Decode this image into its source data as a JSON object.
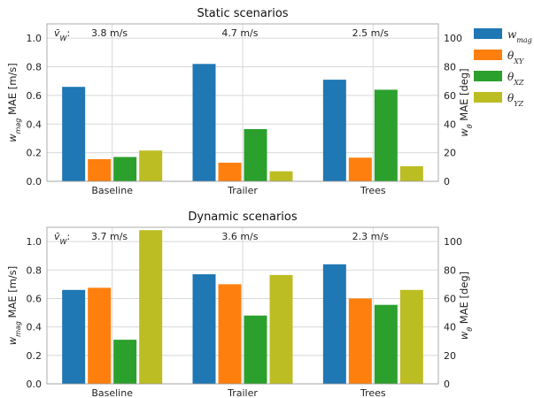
{
  "colors": {
    "w_mag": "#1f77b4",
    "theta_xy": "#ff7f0e",
    "theta_xz": "#2ca02c",
    "theta_yz": "#bcbd22"
  },
  "legend": {
    "items": [
      {
        "key": "w_mag",
        "base": "w",
        "sub": "mag"
      },
      {
        "key": "theta_xy",
        "base": "θ",
        "sub": "XY"
      },
      {
        "key": "theta_xz",
        "base": "θ",
        "sub": "XZ"
      },
      {
        "key": "theta_yz",
        "base": "θ",
        "sub": "YZ"
      }
    ]
  },
  "wind_label": {
    "base": "v̄",
    "sub": "W",
    "suffix": ":"
  },
  "chart_data": [
    {
      "type": "bar",
      "title": "Static scenarios",
      "categories": [
        "Baseline",
        "Trailer",
        "Trees"
      ],
      "annotations": [
        "3.8 m/s",
        "4.7 m/s",
        "2.5 m/s"
      ],
      "ylabel_left": {
        "base": "w",
        "sub": "mag",
        "rest": " MAE [m/s]"
      },
      "ylabel_right": {
        "base": "w",
        "sub": "θ",
        "rest": " MAE [deg]"
      },
      "ylim_left": [
        0,
        1.1
      ],
      "ylim_right": [
        0,
        110
      ],
      "yticks_left": [
        "0.0",
        "0.2",
        "0.4",
        "0.6",
        "0.8",
        "1.0"
      ],
      "yticks_right": [
        "0",
        "20",
        "40",
        "60",
        "80",
        "100"
      ],
      "grid": true,
      "series": [
        {
          "name": "w_mag",
          "axis": "left",
          "values": [
            0.66,
            0.82,
            0.71
          ]
        },
        {
          "name": "θ_XY",
          "axis": "right",
          "values": [
            15.5,
            13,
            16.5
          ]
        },
        {
          "name": "θ_XZ",
          "axis": "right",
          "values": [
            17,
            36.5,
            64
          ]
        },
        {
          "name": "θ_YZ",
          "axis": "right",
          "values": [
            21.5,
            7,
            10.5
          ]
        }
      ]
    },
    {
      "type": "bar",
      "title": "Dynamic scenarios",
      "categories": [
        "Baseline",
        "Trailer",
        "Trees"
      ],
      "annotations": [
        "3.7 m/s",
        "3.6 m/s",
        "2.3 m/s"
      ],
      "ylabel_left": {
        "base": "w",
        "sub": "mag",
        "rest": " MAE [m/s]"
      },
      "ylabel_right": {
        "base": "w",
        "sub": "θ",
        "rest": " MAE [deg]"
      },
      "ylim_left": [
        0,
        1.1
      ],
      "ylim_right": [
        0,
        110
      ],
      "yticks_left": [
        "0.0",
        "0.2",
        "0.4",
        "0.6",
        "0.8",
        "1.0"
      ],
      "yticks_right": [
        "0",
        "20",
        "40",
        "60",
        "80",
        "100"
      ],
      "grid": true,
      "series": [
        {
          "name": "w_mag",
          "axis": "left",
          "values": [
            0.66,
            0.77,
            0.84
          ]
        },
        {
          "name": "θ_XY",
          "axis": "right",
          "values": [
            67.5,
            70,
            60
          ]
        },
        {
          "name": "θ_XZ",
          "axis": "right",
          "values": [
            31,
            48,
            55.5
          ]
        },
        {
          "name": "θ_YZ",
          "axis": "right",
          "values": [
            108,
            76.5,
            66
          ]
        }
      ]
    }
  ]
}
